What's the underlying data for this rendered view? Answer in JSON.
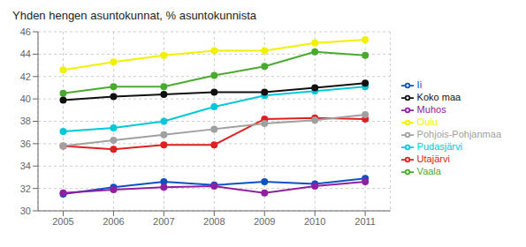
{
  "chart_data": {
    "type": "line",
    "title": "Yhden hengen asuntokunnat, % asuntokunnista",
    "x": [
      2005,
      2006,
      2007,
      2008,
      2009,
      2010,
      2011
    ],
    "xlim": [
      2004.5,
      2011.5
    ],
    "xticks": [
      2005,
      2006,
      2007,
      2008,
      2009,
      2010,
      2011
    ],
    "ylim": [
      30,
      46
    ],
    "yticks": [
      30,
      32,
      34,
      36,
      38,
      40,
      42,
      44,
      46
    ],
    "grid": true,
    "legend": "right",
    "series": [
      {
        "name": "Utajärvi",
        "color": "#e02020",
        "marker": "circle",
        "values": [
          35.8,
          35.5,
          35.9,
          35.9,
          38.2,
          38.3,
          38.2
        ]
      },
      {
        "name": "Vaala",
        "color": "#4aaa30",
        "marker": "circle",
        "values": [
          40.5,
          41.1,
          41.1,
          42.1,
          42.9,
          44.2,
          43.9
        ]
      },
      {
        "name": "Ii",
        "color": "#1050c0",
        "marker": "circle",
        "values": [
          31.5,
          32.1,
          32.6,
          32.3,
          32.6,
          32.4,
          32.9
        ]
      },
      {
        "name": "Pudasjärvi",
        "color": "#00c8d8",
        "marker": "circle",
        "values": [
          37.1,
          37.4,
          38.0,
          39.3,
          40.3,
          40.7,
          41.1
        ]
      },
      {
        "name": "Oulu",
        "color": "#f0f000",
        "marker": "circle",
        "values": [
          42.6,
          43.3,
          43.9,
          44.3,
          44.3,
          45.0,
          45.3
        ]
      },
      {
        "name": "Muhos",
        "color": "#9020a0",
        "marker": "circle",
        "values": [
          31.6,
          31.9,
          32.1,
          32.2,
          31.6,
          32.2,
          32.6
        ]
      },
      {
        "name": "Pohjois-Pohjanmaa",
        "color": "#a0a0a0",
        "marker": "circle",
        "values": [
          35.8,
          36.3,
          36.8,
          37.3,
          37.8,
          38.1,
          38.6
        ]
      },
      {
        "name": "Koko maa",
        "color": "#101010",
        "marker": "circle",
        "values": [
          39.9,
          40.2,
          40.4,
          40.6,
          40.6,
          41.0,
          41.4
        ]
      }
    ]
  }
}
